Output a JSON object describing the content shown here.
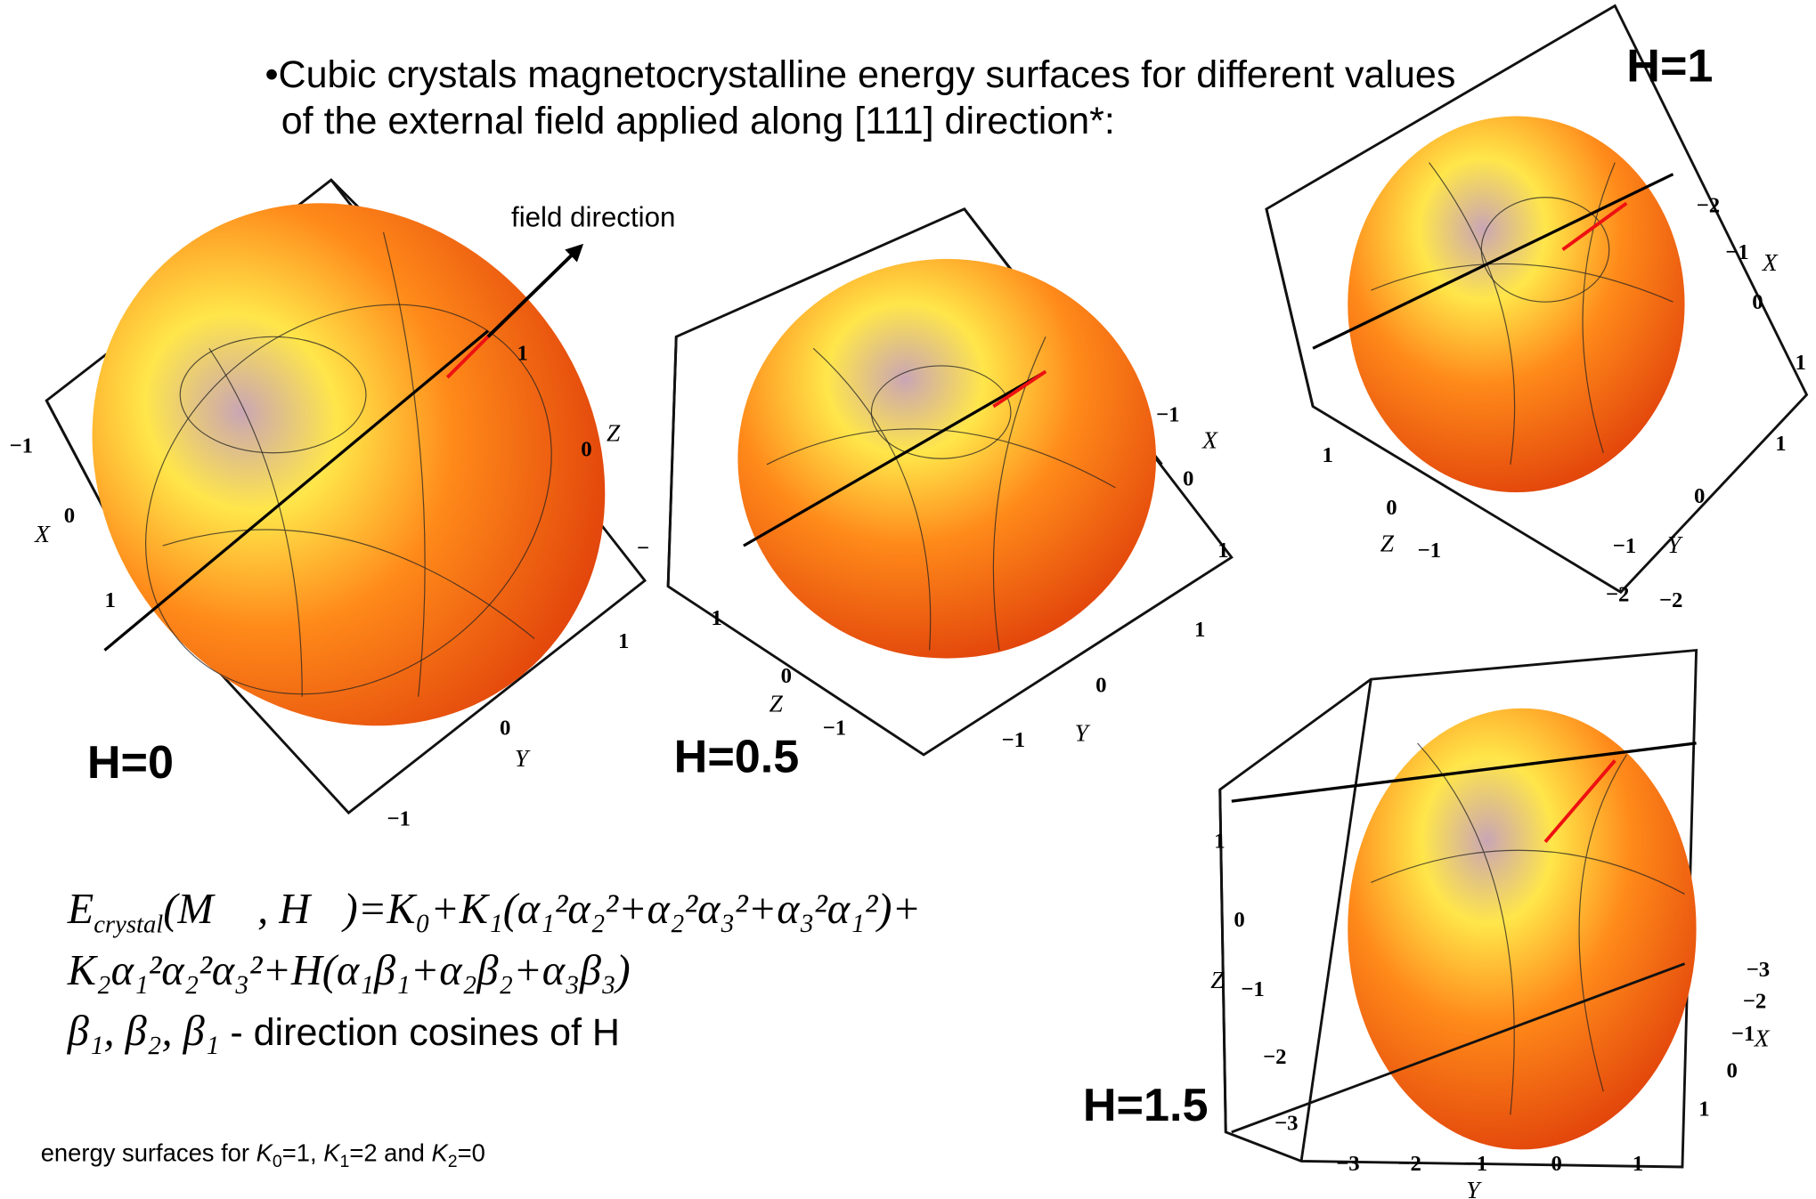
{
  "bullet": {
    "lines": [
      "•Cubic crystals magnetocrystalline energy surfaces for different values",
      "of the external field applied along [111] direction*:"
    ]
  },
  "annotation": "field direction",
  "plots": [
    {
      "label": "H=0",
      "ticks": [
        "−1",
        "X",
        "0",
        "1",
        "1",
        "0",
        "Z",
        "−",
        "1",
        "0",
        "Y",
        "−1"
      ]
    },
    {
      "label": "H=0.5",
      "ticks": [
        "1",
        "0",
        "Z",
        "−1",
        "−1",
        "X",
        "0",
        "1",
        "1",
        "0",
        "−1",
        "Y"
      ]
    },
    {
      "label": "H=1",
      "ticks": [
        "−2",
        "−1",
        "X",
        "0",
        "1",
        "1",
        "0",
        "Z",
        "−1",
        "1",
        "0",
        "−1",
        "Y",
        "−2",
        "−2"
      ]
    },
    {
      "label": "H=1.5",
      "ticks": [
        "1",
        "0",
        "Z",
        "−1",
        "−2",
        "−3",
        "−3",
        "−2",
        "−1",
        "X",
        "0",
        "1",
        "−3",
        "−2",
        "−1",
        "0",
        "1",
        "Y"
      ]
    }
  ],
  "equation": {
    "lines": [
      {
        "parts": [
          {
            "text": "E"
          },
          {
            "text": "crystal",
            "sub": true
          },
          {
            "text": "(M⃗ , H⃗)=K₀+K₁(α₁²α₂²+α₂²α₃²+α₃²α₁²)+"
          }
        ]
      },
      {
        "parts": [
          {
            "text": "K₂α₁²α₂²α₃²+H(α₁β₁+α₂β₂+α₃β₃)"
          }
        ]
      },
      {
        "parts": [
          {
            "text": "β₁,  β₂,  β₁"
          },
          {
            "text": "  - direction cosines of H",
            "plain": true
          }
        ]
      }
    ]
  },
  "footnote": {
    "parts": [
      {
        "text": "energy surfaces for "
      },
      {
        "text": "K",
        "italic": true
      },
      {
        "text": "0",
        "sub": true
      },
      {
        "text": "=1, "
      },
      {
        "text": "K",
        "italic": true
      },
      {
        "text": "1",
        "sub": true
      },
      {
        "text": "=2 and "
      },
      {
        "text": "K",
        "italic": true
      },
      {
        "text": "2",
        "sub": true
      },
      {
        "text": "=0"
      }
    ]
  }
}
